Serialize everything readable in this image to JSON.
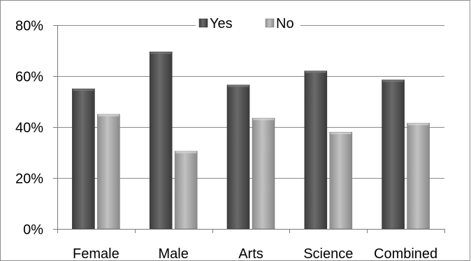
{
  "chart_data": {
    "type": "bar",
    "categories": [
      "Female",
      "Male",
      "Arts",
      "Science",
      "Combined"
    ],
    "series": [
      {
        "name": "Yes",
        "values": [
          55,
          69.5,
          56.5,
          62,
          58.5
        ],
        "color": "#4f4f4f"
      },
      {
        "name": "No",
        "values": [
          45,
          30.5,
          43.5,
          38,
          41.5
        ],
        "color": "#a8a8a8"
      }
    ],
    "y_ticks": [
      "0%",
      "20%",
      "40%",
      "60%",
      "80%"
    ],
    "y_tick_values": [
      0,
      20,
      40,
      60,
      80
    ],
    "ylim": [
      0,
      80
    ],
    "grid": true,
    "legend_position": "top-center"
  }
}
